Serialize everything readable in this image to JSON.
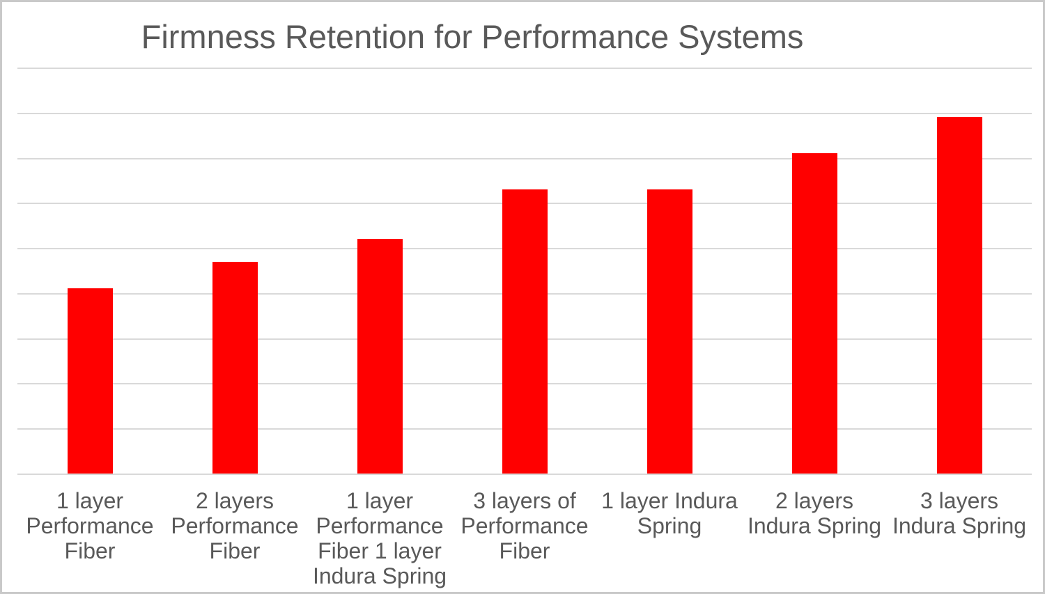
{
  "window": {
    "background": "#ffffff",
    "frame_border_color": "#c9c9c9"
  },
  "chart_data": {
    "type": "bar",
    "title": "Firmness Retention for Performance Systems",
    "categories": [
      "1 layer Performance Fiber",
      "2 layers Performance Fiber",
      "1 layer Performance Fiber 1 layer Indura Spring",
      "3 layers of Performance Fiber",
      "1 layer Indura Spring",
      "2 layers Indura Spring",
      "3 layers Indura Spring"
    ],
    "category_lines": [
      [
        "1 layer",
        "Performance",
        "Fiber"
      ],
      [
        "2 layers",
        "Performance",
        "Fiber"
      ],
      [
        "1 layer",
        "Performance",
        "Fiber 1 layer",
        "Indura Spring"
      ],
      [
        "3 layers of",
        "Performance",
        "Fiber"
      ],
      [
        "1 layer Indura",
        "Spring"
      ],
      [
        "2 layers",
        "Indura Spring"
      ],
      [
        "3 layers",
        "Indura Spring"
      ]
    ],
    "values": [
      41,
      47,
      52,
      63,
      63,
      71,
      79
    ],
    "series": [
      {
        "name": "Firmness Retention",
        "values": [
          41,
          47,
          52,
          63,
          63,
          71,
          79
        ]
      }
    ],
    "xlabel": "",
    "ylabel": "",
    "ylim": [
      0,
      90
    ],
    "gridline_step": 10,
    "grid": true,
    "y_tick_labels_visible": false,
    "legend_position": "none",
    "colors": {
      "bar": "#ff0000",
      "title_text": "#595959",
      "category_text": "#595959",
      "gridline": "#d9d9d9",
      "axis_line": "#d9d9d9",
      "plot_background": "#ffffff"
    }
  }
}
